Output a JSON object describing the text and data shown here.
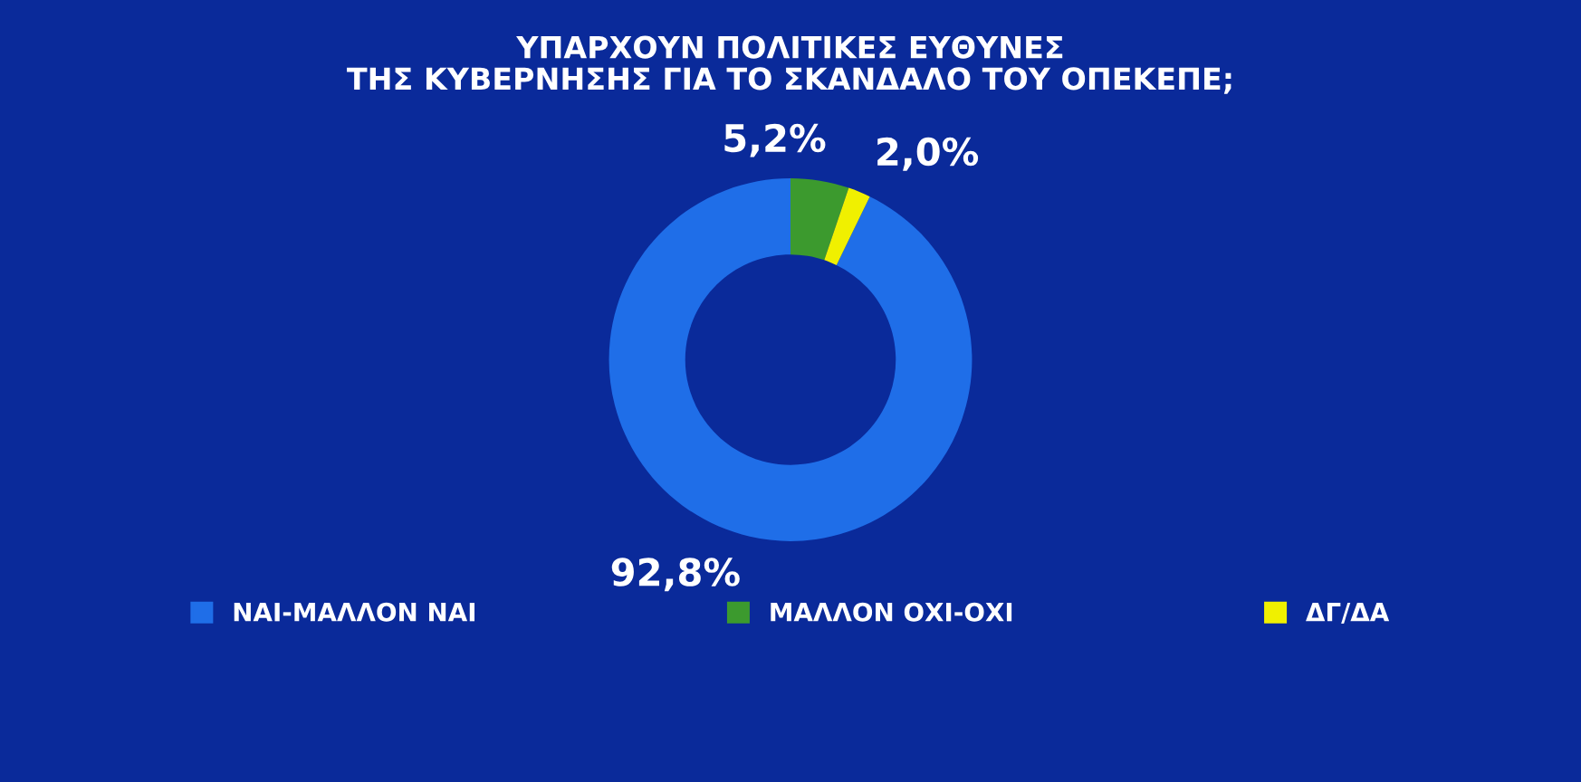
{
  "chart_data": {
    "type": "donut",
    "title": "ΥΠΑΡΧΟΥΝ ΠΟΛΙΤΙΚΕΣ ΕΥΘΥΝΕΣ\nΤΗΣ ΚΥΒΕΡΝΗΣΗΣ ΓΙΑ ΤΟ ΣΚΑΝΔΑΛΟ ΤΟΥ ΟΠΕΚΕΠΕ;",
    "categories": [
      "ΝΑΙ-ΜΑΛΛΟΝ ΝΑΙ",
      "ΜΑΛΛΟΝ ΟΧΙ-ΟΧΙ",
      "ΔΓ/ΔΑ"
    ],
    "values": [
      92.8,
      5.2,
      2.0
    ],
    "colors": [
      "#1f6ee8",
      "#3c9a2e",
      "#f0f000"
    ],
    "value_labels": [
      "92,8%",
      "5,2%",
      "2,0%"
    ],
    "legend": "bottom"
  }
}
